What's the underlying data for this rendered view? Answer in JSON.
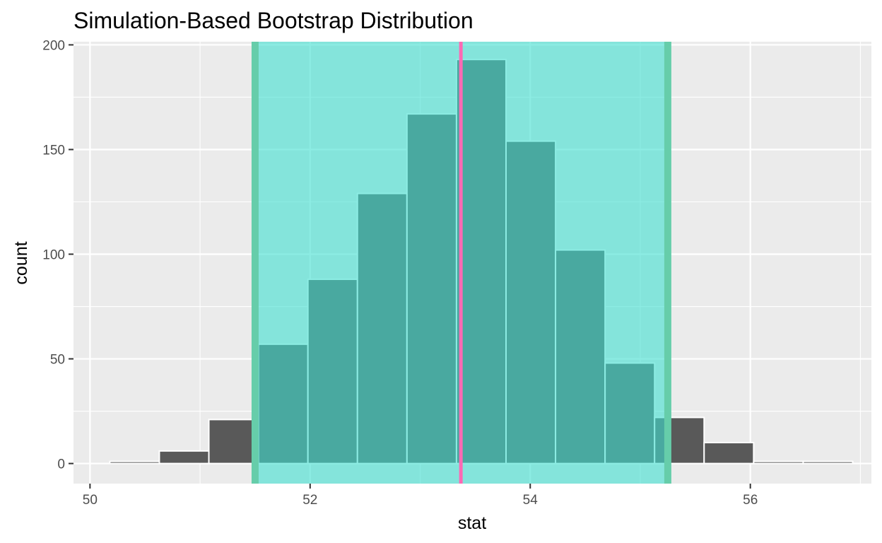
{
  "chart_data": {
    "type": "bar",
    "title": "Simulation-Based Bootstrap Distribution",
    "xlabel": "stat",
    "ylabel": "count",
    "xlim": [
      49.85,
      57.1
    ],
    "ylim": [
      -9.6,
      201.5
    ],
    "x_ticks": [
      50,
      52,
      54,
      56
    ],
    "y_ticks": [
      0,
      50,
      100,
      150,
      200
    ],
    "grid": true,
    "legend": "none",
    "bins": [
      {
        "start": 50.18,
        "end": 50.63,
        "count": 1
      },
      {
        "start": 50.63,
        "end": 51.08,
        "count": 6
      },
      {
        "start": 51.08,
        "end": 51.53,
        "count": 21
      },
      {
        "start": 51.53,
        "end": 51.98,
        "count": 57
      },
      {
        "start": 51.98,
        "end": 52.43,
        "count": 88
      },
      {
        "start": 52.43,
        "end": 52.88,
        "count": 129
      },
      {
        "start": 52.88,
        "end": 53.33,
        "count": 167
      },
      {
        "start": 53.33,
        "end": 53.78,
        "count": 193
      },
      {
        "start": 53.78,
        "end": 54.23,
        "count": 154
      },
      {
        "start": 54.23,
        "end": 54.68,
        "count": 102
      },
      {
        "start": 54.68,
        "end": 55.13,
        "count": 48
      },
      {
        "start": 55.13,
        "end": 55.58,
        "count": 22
      },
      {
        "start": 55.58,
        "end": 56.03,
        "count": 10
      },
      {
        "start": 56.03,
        "end": 56.48,
        "count": 1
      },
      {
        "start": 56.48,
        "end": 56.93,
        "count": 1
      }
    ],
    "confidence_interval": {
      "lower": 51.5,
      "upper": 55.25
    },
    "point_estimate": 53.37,
    "colors": {
      "panel_background": "#ebebeb",
      "grid": "#ffffff",
      "bar_fill": "#595959",
      "bar_outline": "#ffffff",
      "ci_shade": "#40e0d0",
      "ci_endpoints": "#66cdaa",
      "point_estimate_line": "#ff69b4"
    }
  }
}
